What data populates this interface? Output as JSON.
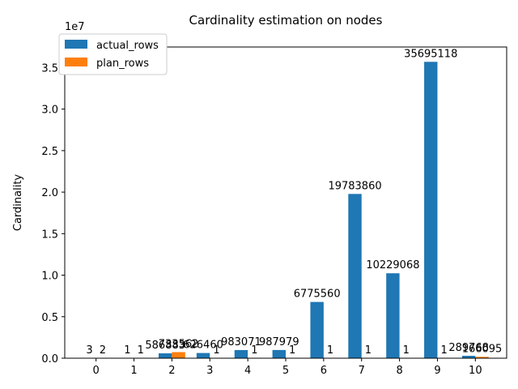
{
  "chart_data": {
    "type": "bar",
    "title": "Cardinality estimation on nodes",
    "ylabel": "Cardinality",
    "xlabel": "",
    "y_offset_label": "1e7",
    "categories": [
      "0",
      "1",
      "2",
      "3",
      "4",
      "5",
      "6",
      "7",
      "8",
      "9",
      "10"
    ],
    "yticks": [
      "0.0",
      "0.5",
      "1.0",
      "1.5",
      "2.0",
      "2.5",
      "3.0",
      "3.5"
    ],
    "ytick_values": [
      0,
      5000000,
      10000000,
      15000000,
      20000000,
      25000000,
      30000000,
      35000000
    ],
    "ylim": [
      0,
      37480000
    ],
    "legend_position": "upper-left",
    "grid": false,
    "series": [
      {
        "name": "actual_rows",
        "color": "#1f77b4",
        "values": [
          3,
          1,
          586883,
          626460,
          983071,
          987979,
          6775560,
          19783860,
          10229068,
          35695118,
          289768
        ],
        "labels": [
          "3",
          "1",
          "586883",
          "626460",
          "983071",
          "987979",
          "6775560",
          "19783860",
          "10229068",
          "35695118",
          "289768"
        ]
      },
      {
        "name": "plan_rows",
        "color": "#ff7f0e",
        "values": [
          2,
          1,
          733562,
          1,
          1,
          1,
          1,
          1,
          1,
          1,
          166095
        ],
        "labels": [
          "2",
          "1",
          "733562",
          "1",
          "1",
          "1",
          "1",
          "1",
          "1",
          "1",
          "166095"
        ]
      }
    ]
  }
}
